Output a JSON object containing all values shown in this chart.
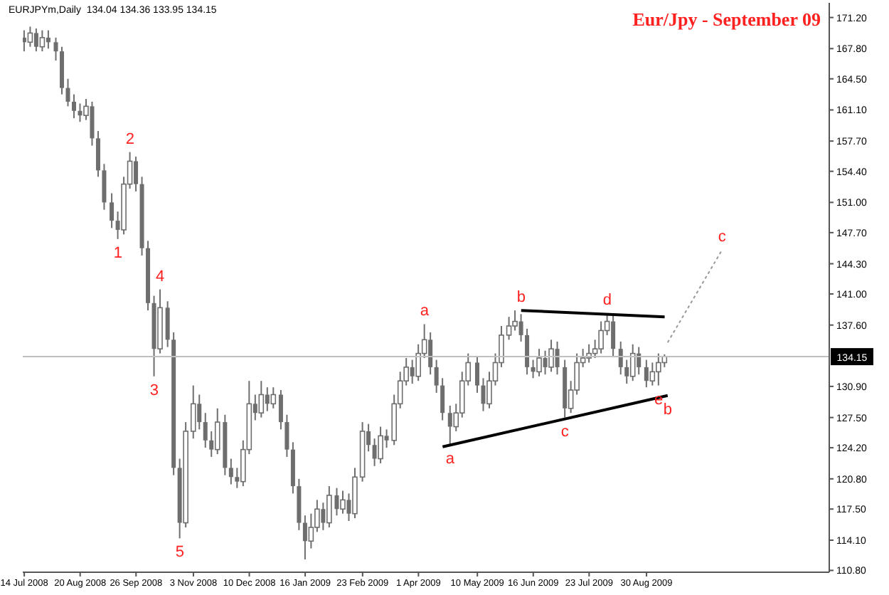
{
  "chart_data": {
    "type": "candlestick",
    "title": "Eur/Jpy - September 09",
    "color": "#6e6e6e",
    "x": [
      "2008-07-14",
      "2008-07-18",
      "2008-07-22",
      "2008-07-26",
      "2008-07-30",
      "2008-08-04",
      "2008-08-08",
      "2008-08-12",
      "2008-08-16",
      "2008-08-20",
      "2008-08-24",
      "2008-08-28",
      "2008-09-01",
      "2008-09-05",
      "2008-09-10",
      "2008-09-14",
      "2008-09-18",
      "2008-09-22",
      "2008-09-26",
      "2008-09-30",
      "2008-10-04",
      "2008-10-08",
      "2008-10-12",
      "2008-10-17",
      "2008-10-21",
      "2008-10-25",
      "2008-10-29",
      "2008-11-03",
      "2008-11-07",
      "2008-11-11",
      "2008-11-15",
      "2008-11-19",
      "2008-11-24",
      "2008-11-28",
      "2008-12-02",
      "2008-12-06",
      "2008-12-10",
      "2008-12-14",
      "2008-12-18",
      "2008-12-22",
      "2008-12-26",
      "2008-12-31",
      "2009-01-04",
      "2009-01-08",
      "2009-01-12",
      "2009-01-16",
      "2009-01-20",
      "2009-01-24",
      "2009-01-28",
      "2009-02-01",
      "2009-02-06",
      "2009-02-10",
      "2009-02-14",
      "2009-02-18",
      "2009-02-23",
      "2009-02-27",
      "2009-03-03",
      "2009-03-07",
      "2009-03-11",
      "2009-03-16",
      "2009-03-20",
      "2009-03-24",
      "2009-03-28",
      "2009-04-01",
      "2009-04-05",
      "2009-04-09",
      "2009-04-13",
      "2009-04-17",
      "2009-04-22",
      "2009-04-26",
      "2009-04-30",
      "2009-05-04",
      "2009-05-10",
      "2009-05-14",
      "2009-05-18",
      "2009-05-22",
      "2009-05-26",
      "2009-05-31",
      "2009-06-04",
      "2009-06-08",
      "2009-06-12",
      "2009-06-16",
      "2009-06-20",
      "2009-06-24",
      "2009-06-28",
      "2009-07-02",
      "2009-07-07",
      "2009-07-11",
      "2009-07-15",
      "2009-07-19",
      "2009-07-23",
      "2009-07-27",
      "2009-07-31",
      "2009-08-04",
      "2009-08-08",
      "2009-08-13",
      "2009-08-17",
      "2009-08-21",
      "2009-08-25",
      "2009-08-30",
      "2009-09-03",
      "2009-09-07",
      "2009-09-11"
    ],
    "ohlc": [
      [
        169,
        169.8,
        167.5,
        168.5
      ],
      [
        168.5,
        170.2,
        168,
        169.5
      ],
      [
        169.5,
        170,
        167.5,
        168
      ],
      [
        168,
        169.8,
        167.5,
        169
      ],
      [
        169,
        169.8,
        167.8,
        168.5
      ],
      [
        168.5,
        169,
        166.5,
        167.5
      ],
      [
        167.5,
        168,
        162.8,
        163.5
      ],
      [
        163.5,
        164.5,
        161.5,
        162
      ],
      [
        162,
        162.8,
        160.2,
        161
      ],
      [
        161,
        161.8,
        159.8,
        160.5
      ],
      [
        160.5,
        162.3,
        160,
        161.5
      ],
      [
        161.5,
        162,
        157.2,
        158
      ],
      [
        158,
        158.8,
        153.8,
        154.5
      ],
      [
        154.5,
        155.2,
        150.2,
        151
      ],
      [
        151,
        152,
        148.2,
        149
      ],
      [
        149,
        150,
        147,
        148
      ],
      [
        148,
        153.8,
        147.5,
        153
      ],
      [
        153,
        156.5,
        152.5,
        155.5
      ],
      [
        155.5,
        156,
        152.2,
        153
      ],
      [
        153,
        153.8,
        145.2,
        146
      ],
      [
        146,
        146.8,
        139.2,
        140
      ],
      [
        140,
        140.8,
        132,
        135
      ],
      [
        135,
        141.5,
        134.5,
        139.5
      ],
      [
        139.5,
        140.2,
        135.2,
        136
      ],
      [
        136,
        136.8,
        121.2,
        122
      ],
      [
        122,
        123,
        114.3,
        116
      ],
      [
        116,
        127,
        115.5,
        126
      ],
      [
        126,
        131,
        125.2,
        129
      ],
      [
        129,
        130,
        126.2,
        127
      ],
      [
        127,
        128,
        124.2,
        125
      ],
      [
        125,
        126,
        123.2,
        124
      ],
      [
        124,
        128.5,
        123.5,
        127
      ],
      [
        127,
        127.8,
        121.2,
        122
      ],
      [
        122,
        123,
        120.2,
        121
      ],
      [
        121,
        122,
        119.8,
        120.5
      ],
      [
        120.5,
        125,
        120,
        124
      ],
      [
        124,
        131.5,
        123.5,
        129
      ],
      [
        129,
        130,
        127.2,
        128
      ],
      [
        128,
        131.5,
        127.5,
        130
      ],
      [
        130,
        130.8,
        128.2,
        129
      ],
      [
        129,
        130.8,
        128.5,
        130
      ],
      [
        130,
        130.5,
        126.2,
        127
      ],
      [
        127,
        127.8,
        123.2,
        124
      ],
      [
        124,
        124.8,
        119.2,
        120
      ],
      [
        120,
        120.8,
        115.2,
        116
      ],
      [
        116,
        116.8,
        112,
        114
      ],
      [
        114,
        117,
        113.2,
        115.5
      ],
      [
        115.5,
        118.5,
        115,
        117.5
      ],
      [
        117.5,
        118.2,
        115.2,
        116
      ],
      [
        116,
        120,
        115.5,
        119
      ],
      [
        119,
        119.8,
        116.8,
        117.5
      ],
      [
        117.5,
        119.5,
        117,
        118.5
      ],
      [
        118.5,
        119.2,
        116.2,
        117
      ],
      [
        117,
        122,
        116.5,
        121
      ],
      [
        121,
        127,
        120.5,
        126
      ],
      [
        126,
        126.8,
        123.8,
        124.5
      ],
      [
        124.5,
        125.2,
        122.2,
        123
      ],
      [
        123,
        126.5,
        122.5,
        125.5
      ],
      [
        125.5,
        126.2,
        124.2,
        125
      ],
      [
        125,
        130,
        124.5,
        129
      ],
      [
        129,
        132.5,
        128.5,
        131.5
      ],
      [
        131.5,
        134,
        131,
        133
      ],
      [
        133,
        133.8,
        131.2,
        132
      ],
      [
        132,
        135.5,
        131.5,
        134.5
      ],
      [
        134.5,
        137.7,
        134,
        136
      ],
      [
        136,
        136.8,
        132.2,
        133
      ],
      [
        133,
        133.8,
        130.2,
        131
      ],
      [
        131,
        131.8,
        127.2,
        128
      ],
      [
        128,
        128.8,
        124.5,
        126.5
      ],
      [
        126.5,
        129,
        126,
        128
      ],
      [
        128,
        132.5,
        127.5,
        131.5
      ],
      [
        131.5,
        134.5,
        131,
        133.5
      ],
      [
        133.5,
        134.2,
        130.2,
        131
      ],
      [
        131,
        131.8,
        128.2,
        129
      ],
      [
        129,
        132.5,
        128.5,
        131.5
      ],
      [
        131.5,
        134.5,
        131,
        133.5
      ],
      [
        133.5,
        137.5,
        133,
        136.5
      ],
      [
        136.5,
        138.5,
        136,
        137.5
      ],
      [
        137.5,
        139.2,
        137,
        138
      ],
      [
        138,
        138.8,
        135.8,
        136.5
      ],
      [
        136.5,
        137.2,
        132.2,
        133
      ],
      [
        133,
        133.8,
        131.8,
        132.5
      ],
      [
        132.5,
        135,
        132,
        134
      ],
      [
        134,
        134.8,
        132.2,
        133
      ],
      [
        133,
        136,
        132.5,
        135
      ],
      [
        135,
        135.8,
        132.2,
        133
      ],
      [
        133,
        133.8,
        127.5,
        128.5
      ],
      [
        128.5,
        131.5,
        128,
        130.5
      ],
      [
        130.5,
        134.5,
        130,
        133.5
      ],
      [
        133.5,
        135,
        133,
        134
      ],
      [
        134,
        135.5,
        133.5,
        134.5
      ],
      [
        134.5,
        136,
        134,
        135
      ],
      [
        135,
        138,
        134.5,
        137
      ],
      [
        137,
        138.9,
        136.5,
        138
      ],
      [
        138,
        138.8,
        134.2,
        135
      ],
      [
        135,
        135.8,
        132.2,
        133
      ],
      [
        133,
        133.8,
        131.2,
        132
      ],
      [
        132,
        135.5,
        131.5,
        134.5
      ],
      [
        134.5,
        135.2,
        132.2,
        133
      ],
      [
        133,
        133.8,
        130.8,
        131.5
      ],
      [
        131.5,
        133.5,
        131,
        132.5
      ],
      [
        132.5,
        134.5,
        131,
        133.5
      ],
      [
        133.5,
        134.4,
        133,
        134.15
      ]
    ],
    "series": [
      {
        "type": "line",
        "color": "#000000",
        "x": [
          "2009-06-08",
          "2009-09-11"
        ],
        "values": [
          139.2,
          138.5
        ]
      },
      {
        "type": "line",
        "color": "#000000",
        "x": [
          "2009-04-17",
          "2009-09-13"
        ],
        "values": [
          124.3,
          129.9
        ]
      },
      {
        "type": "line",
        "color": "#999999",
        "line_style": "dotted",
        "x": [
          "2009-09-13",
          "2009-10-19"
        ],
        "values": [
          135.7,
          145.8
        ]
      }
    ],
    "xlim": [
      "2008-07-13",
      "2009-12-29"
    ],
    "xticks": [
      {
        "value": "2008-07-14",
        "label": "14 Jul 2008"
      },
      {
        "value": "2008-08-20",
        "label": "20 Aug 2008"
      },
      {
        "value": "2008-09-26",
        "label": "26 Sep 2008"
      },
      {
        "value": "2008-11-03",
        "label": "3 Nov 2008"
      },
      {
        "value": "2008-12-10",
        "label": "10 Dec 2008"
      },
      {
        "value": "2009-01-16",
        "label": "16 Jan 2009"
      },
      {
        "value": "2009-02-23",
        "label": "23 Feb 2009"
      },
      {
        "value": "2009-04-01",
        "label": "1 Apr 2009"
      },
      {
        "value": "2009-05-10",
        "label": "10 May 2009"
      },
      {
        "value": "2009-06-16",
        "label": "16 Jun 2009"
      },
      {
        "value": "2009-07-23",
        "label": "23 Jul 2009"
      },
      {
        "value": "2009-08-30",
        "label": "30 Aug 2009"
      }
    ],
    "ylim": [
      110.6,
      172.8
    ],
    "yticks": [
      {
        "value": 171.2,
        "label": "171.20"
      },
      {
        "value": 167.8,
        "label": "167.80"
      },
      {
        "value": 164.5,
        "label": "164.50"
      },
      {
        "value": 161.1,
        "label": "161.10"
      },
      {
        "value": 157.7,
        "label": "157.70"
      },
      {
        "value": 154.4,
        "label": "154.40"
      },
      {
        "value": 151,
        "label": "151.00"
      },
      {
        "value": 147.7,
        "label": "147.70"
      },
      {
        "value": 144.3,
        "label": "144.30"
      },
      {
        "value": 141,
        "label": "141.00"
      },
      {
        "value": 137.6,
        "label": "137.60"
      },
      {
        "value": 130.9,
        "label": "130.90"
      },
      {
        "value": 127.5,
        "label": "127.50"
      },
      {
        "value": 124.2,
        "label": "124.20"
      },
      {
        "value": 120.8,
        "label": "120.80"
      },
      {
        "value": 117.5,
        "label": "117.50"
      },
      {
        "value": 114.1,
        "label": "114.10"
      },
      {
        "value": 110.8,
        "label": "110.80"
      }
    ],
    "ref_lines": [
      {
        "axis": "y",
        "value": 134.15,
        "label": "134.15",
        "color": "#c0c0c0"
      }
    ],
    "annotations": [
      "EURJPYm,Daily  134.04 134.36 133.95 134.15",
      {
        "text": "1",
        "x": "2008-09-14",
        "y": 147
      },
      {
        "text": "2",
        "x": "2008-09-22",
        "y": 156.5
      },
      {
        "text": "3",
        "x": "2008-10-08",
        "y": 132
      },
      {
        "text": "4",
        "x": "2008-10-12",
        "y": 141.5
      },
      {
        "text": "5",
        "x": "2008-10-25",
        "y": 114.3
      },
      {
        "text": "a",
        "x": "2009-04-05",
        "y": 137.7
      },
      {
        "text": "b",
        "x": "2009-09-13",
        "y": 129.9
      },
      {
        "text": "c",
        "x": "2009-10-19",
        "y": 145.8
      },
      {
        "text": "a",
        "x": "2009-04-22",
        "y": 124.5
      },
      {
        "text": "b",
        "x": "2009-06-08",
        "y": 139.2
      },
      {
        "text": "c",
        "x": "2009-07-07",
        "y": 127.5
      },
      {
        "text": "d",
        "x": "2009-08-04",
        "y": 138.9
      },
      {
        "text": "e",
        "x": "2009-09-07",
        "y": 131
      }
    ]
  }
}
